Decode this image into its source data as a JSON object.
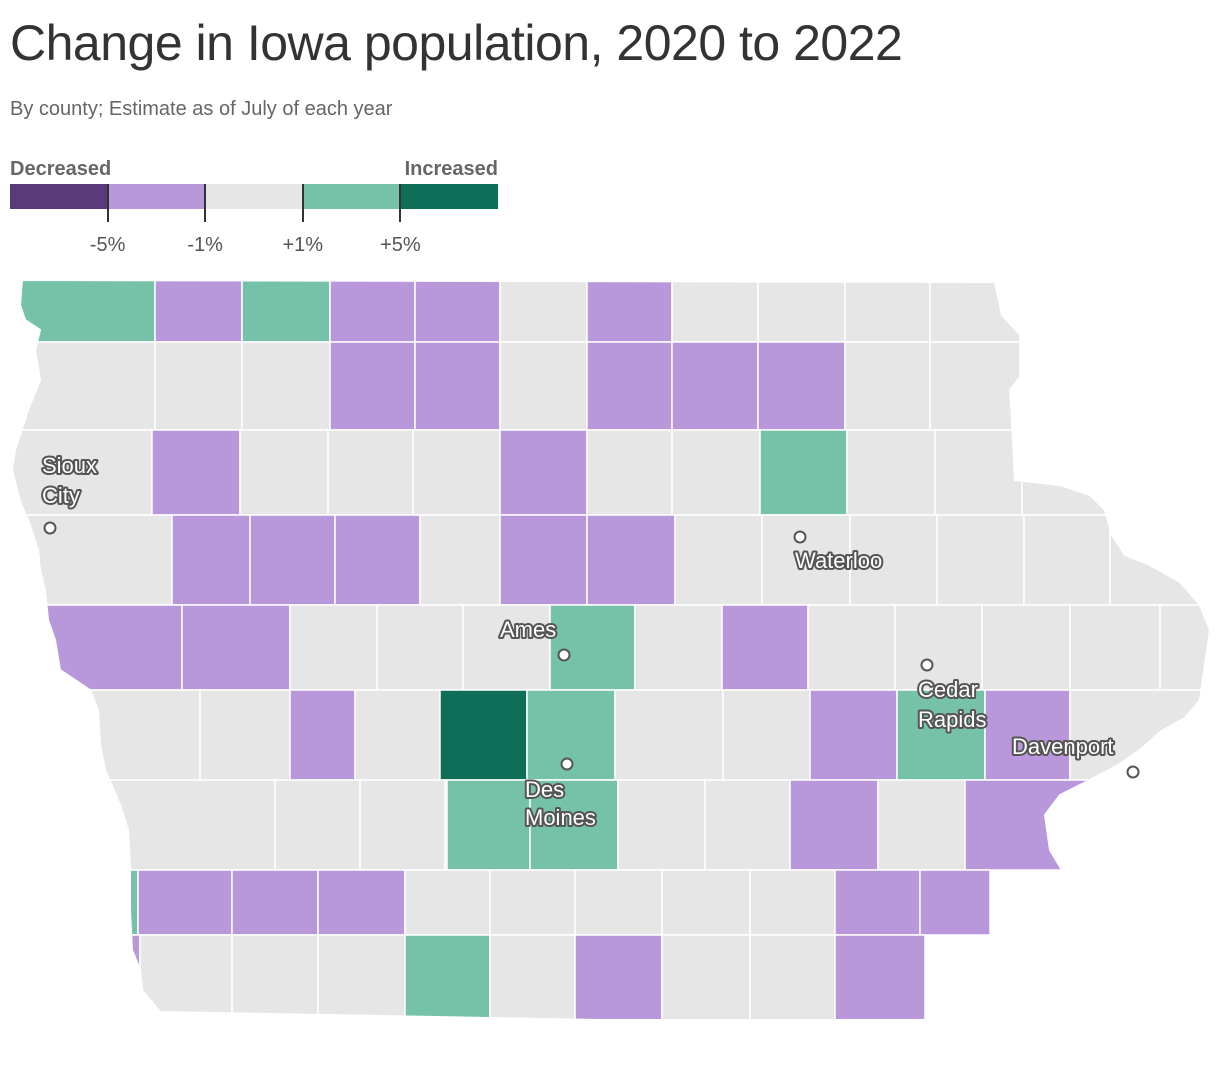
{
  "title": "Change in Iowa population, 2020 to 2022",
  "subtitle": "By county; Estimate as of July of each year",
  "legend": {
    "left_label": "Decreased",
    "right_label": "Increased",
    "bins": [
      {
        "color": "#5b3a7c"
      },
      {
        "color": "#b897da"
      },
      {
        "color": "#e6e6e6"
      },
      {
        "color": "#76c2a8"
      },
      {
        "color": "#0e6e57"
      }
    ],
    "ticks": [
      "-5%",
      "-1%",
      "+1%",
      "+5%"
    ]
  },
  "colors": {
    "none": "#e6e6e6",
    "down_small": "#b897da",
    "up_small": "#76c2a8",
    "up_large": "#0e6e57"
  },
  "cities": [
    {
      "name_lines": [
        "Sioux",
        "City"
      ],
      "icon": "city-dot"
    },
    {
      "name_lines": [
        "Waterloo"
      ],
      "icon": "city-dot"
    },
    {
      "name_lines": [
        "Ames"
      ],
      "icon": "city-dot"
    },
    {
      "name_lines": [
        "Cedar",
        "Rapids"
      ],
      "icon": "city-dot"
    },
    {
      "name_lines": [
        "Davenport"
      ],
      "icon": "city-dot"
    },
    {
      "name_lines": [
        "Des",
        "Moines"
      ],
      "icon": "city-dot"
    }
  ],
  "counties": [
    {
      "row": 0,
      "col": 0,
      "cat": "up_small"
    },
    {
      "row": 0,
      "col": 1,
      "cat": "down_small"
    },
    {
      "row": 0,
      "col": 2,
      "cat": "up_small"
    },
    {
      "row": 0,
      "col": 3,
      "cat": "down_small"
    },
    {
      "row": 0,
      "col": 4,
      "cat": "down_small"
    },
    {
      "row": 0,
      "col": 5,
      "cat": "none"
    },
    {
      "row": 0,
      "col": 6,
      "cat": "down_small"
    },
    {
      "row": 0,
      "col": 7,
      "cat": "none"
    },
    {
      "row": 0,
      "col": 8,
      "cat": "none"
    },
    {
      "row": 0,
      "col": 9,
      "cat": "none"
    },
    {
      "row": 0,
      "col": 10,
      "cat": "none"
    },
    {
      "row": 1,
      "col": 0,
      "cat": "none"
    },
    {
      "row": 1,
      "col": 1,
      "cat": "none"
    },
    {
      "row": 1,
      "col": 2,
      "cat": "none"
    },
    {
      "row": 1,
      "col": 3,
      "cat": "down_small"
    },
    {
      "row": 1,
      "col": 4,
      "cat": "down_small"
    },
    {
      "row": 1,
      "col": 5,
      "cat": "none"
    },
    {
      "row": 1,
      "col": 6,
      "cat": "down_small"
    },
    {
      "row": 1,
      "col": 7,
      "cat": "down_small"
    },
    {
      "row": 1,
      "col": 8,
      "cat": "down_small"
    },
    {
      "row": 1,
      "col": 9,
      "cat": "none"
    },
    {
      "row": 1,
      "col": 10,
      "cat": "none"
    },
    {
      "row": 2,
      "col": 0,
      "cat": "none"
    },
    {
      "row": 2,
      "col": 1,
      "cat": "down_small"
    },
    {
      "row": 2,
      "col": 2,
      "cat": "none"
    },
    {
      "row": 2,
      "col": 3,
      "cat": "none"
    },
    {
      "row": 2,
      "col": 4,
      "cat": "none"
    },
    {
      "row": 2,
      "col": 5,
      "cat": "down_small"
    },
    {
      "row": 2,
      "col": 6,
      "cat": "none"
    },
    {
      "row": 2,
      "col": 7,
      "cat": "none"
    },
    {
      "row": 2,
      "col": 8,
      "cat": "up_small"
    },
    {
      "row": 2,
      "col": 9,
      "cat": "none"
    },
    {
      "row": 2,
      "col": 10,
      "cat": "none"
    },
    {
      "row": 2,
      "col": 11,
      "cat": "none"
    },
    {
      "row": 3,
      "col": 0,
      "cat": "none"
    },
    {
      "row": 3,
      "col": 1,
      "cat": "down_small"
    },
    {
      "row": 3,
      "col": 2,
      "cat": "down_small"
    },
    {
      "row": 3,
      "col": 3,
      "cat": "down_small"
    },
    {
      "row": 3,
      "col": 4,
      "cat": "none"
    },
    {
      "row": 3,
      "col": 5,
      "cat": "down_small"
    },
    {
      "row": 3,
      "col": 6,
      "cat": "down_small"
    },
    {
      "row": 3,
      "col": 7,
      "cat": "none"
    },
    {
      "row": 3,
      "col": 8,
      "cat": "none"
    },
    {
      "row": 3,
      "col": 9,
      "cat": "none"
    },
    {
      "row": 3,
      "col": 10,
      "cat": "none"
    },
    {
      "row": 3,
      "col": 11,
      "cat": "none"
    },
    {
      "row": 3,
      "col": 12,
      "cat": "none"
    },
    {
      "row": 4,
      "col": 0,
      "cat": "down_small"
    },
    {
      "row": 4,
      "col": 1,
      "cat": "down_small"
    },
    {
      "row": 4,
      "col": 2,
      "cat": "none"
    },
    {
      "row": 4,
      "col": 3,
      "cat": "none"
    },
    {
      "row": 4,
      "col": 4,
      "cat": "none"
    },
    {
      "row": 4,
      "col": 5,
      "cat": "up_small"
    },
    {
      "row": 4,
      "col": 6,
      "cat": "none"
    },
    {
      "row": 4,
      "col": 7,
      "cat": "down_small"
    },
    {
      "row": 4,
      "col": 8,
      "cat": "none"
    },
    {
      "row": 4,
      "col": 9,
      "cat": "none"
    },
    {
      "row": 4,
      "col": 10,
      "cat": "none"
    },
    {
      "row": 4,
      "col": 11,
      "cat": "none"
    },
    {
      "row": 4,
      "col": 12,
      "cat": "none"
    },
    {
      "row": 5,
      "col": 0,
      "cat": "none"
    },
    {
      "row": 5,
      "col": 1,
      "cat": "none"
    },
    {
      "row": 5,
      "col": 2,
      "cat": "down_small"
    },
    {
      "row": 5,
      "col": 3,
      "cat": "none"
    },
    {
      "row": 5,
      "col": 4,
      "cat": "up_large"
    },
    {
      "row": 5,
      "col": 5,
      "cat": "up_small"
    },
    {
      "row": 5,
      "col": 6,
      "cat": "none"
    },
    {
      "row": 5,
      "col": 7,
      "cat": "none"
    },
    {
      "row": 5,
      "col": 8,
      "cat": "down_small"
    },
    {
      "row": 5,
      "col": 9,
      "cat": "up_small"
    },
    {
      "row": 5,
      "col": 10,
      "cat": "down_small"
    },
    {
      "row": 5,
      "col": 11,
      "cat": "none"
    },
    {
      "row": 6,
      "col": 0,
      "cat": "none"
    },
    {
      "row": 6,
      "col": 1,
      "cat": "none"
    },
    {
      "row": 6,
      "col": 2,
      "cat": "none"
    },
    {
      "row": 6,
      "col": 3,
      "cat": "none"
    },
    {
      "row": 6,
      "col": 4,
      "cat": "up_small"
    },
    {
      "row": 6,
      "col": 5,
      "cat": "up_small"
    },
    {
      "row": 6,
      "col": 6,
      "cat": "none"
    },
    {
      "row": 6,
      "col": 7,
      "cat": "none"
    },
    {
      "row": 6,
      "col": 8,
      "cat": "down_small"
    },
    {
      "row": 6,
      "col": 9,
      "cat": "none"
    },
    {
      "row": 6,
      "col": 10,
      "cat": "down_small"
    },
    {
      "row": 7,
      "col": 0,
      "cat": "up_small"
    },
    {
      "row": 7,
      "col": 1,
      "cat": "down_small"
    },
    {
      "row": 7,
      "col": 2,
      "cat": "down_small"
    },
    {
      "row": 7,
      "col": 3,
      "cat": "down_small"
    },
    {
      "row": 7,
      "col": 4,
      "cat": "none"
    },
    {
      "row": 7,
      "col": 5,
      "cat": "none"
    },
    {
      "row": 7,
      "col": 6,
      "cat": "none"
    },
    {
      "row": 7,
      "col": 7,
      "cat": "none"
    },
    {
      "row": 7,
      "col": 8,
      "cat": "none"
    },
    {
      "row": 7,
      "col": 9,
      "cat": "down_small"
    },
    {
      "row": 7,
      "col": 10,
      "cat": "down_small"
    },
    {
      "row": 8,
      "col": 0,
      "cat": "down_small"
    },
    {
      "row": 8,
      "col": 1,
      "cat": "none"
    },
    {
      "row": 8,
      "col": 2,
      "cat": "none"
    },
    {
      "row": 8,
      "col": 3,
      "cat": "none"
    },
    {
      "row": 8,
      "col": 4,
      "cat": "up_small"
    },
    {
      "row": 8,
      "col": 5,
      "cat": "none"
    },
    {
      "row": 8,
      "col": 6,
      "cat": "down_small"
    },
    {
      "row": 8,
      "col": 7,
      "cat": "none"
    },
    {
      "row": 8,
      "col": 8,
      "cat": "none"
    },
    {
      "row": 8,
      "col": 9,
      "cat": "down_small"
    }
  ]
}
